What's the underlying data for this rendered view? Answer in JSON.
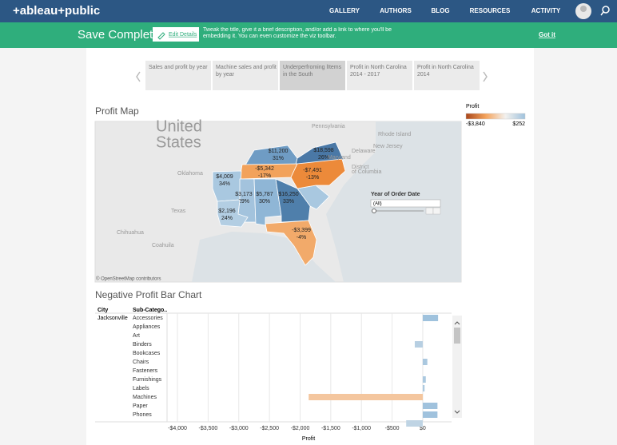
{
  "header": {
    "logo": "+ableau+public",
    "nav": [
      "GALLERY",
      "AUTHORS",
      "BLOG",
      "RESOURCES",
      "ACTIVITY"
    ]
  },
  "banner": {
    "status": "Save Complete.",
    "button": "Edit Details",
    "message": "Tweak the title, give it a brief description, and/or add a link to where you'll be embedding it. You can even customize the viz toolbar.",
    "dismiss": "Got it"
  },
  "tabs": [
    "Sales and profit by year",
    "Machine sales and profit by year",
    "Underperfroming lItems in the South",
    "Profit in North Carolina  2014 - 2017",
    "Profit in North Carolina 2014"
  ],
  "map": {
    "title": "Profit Map",
    "regions": [
      {
        "amount": "$11,200",
        "share": "31%",
        "color": "#6f9cc4"
      },
      {
        "amount": "$18,598",
        "share": "26%",
        "color": "#4a78a6"
      },
      {
        "amount": "-$5,342",
        "share": "-17%",
        "color": "#f2a25b"
      },
      {
        "amount": "-$7,491",
        "share": "-13%",
        "color": "#ec8a3a"
      },
      {
        "amount": "$4,009",
        "share": "34%",
        "color": "#a9c8e0"
      },
      {
        "amount": "$3,173",
        "share": "29%",
        "color": "#a3c3dd"
      },
      {
        "amount": "$5,787",
        "share": "30%",
        "color": "#8fb6d6"
      },
      {
        "amount": "$16,250",
        "share": "33%",
        "color": "#4f7fab"
      },
      {
        "amount": "$2,196",
        "share": "24%",
        "color": "#b3cee3"
      },
      {
        "amount": "-$3,399",
        "share": "-4%",
        "color": "#f2aa6a"
      }
    ],
    "places": [
      "United",
      "States",
      "Pennsylvania",
      "Rhode Island",
      "New Jersey",
      "Delaware",
      "Maryland",
      "District",
      "of Columbia",
      "Oklahoma",
      "Texas",
      "Chihuahua",
      "Coahuila"
    ],
    "attribution": "© OpenStreetMap contributors"
  },
  "filter": {
    "title": "Year of Order Date",
    "value": "(All)"
  },
  "legend": {
    "title": "Profit",
    "min": "-$3,840",
    "max": "$252"
  },
  "chart_data": {
    "type": "bar",
    "orientation": "horizontal",
    "title": "Negative Profit Bar Chart",
    "column_headers": [
      "City",
      "Sub-Catego.."
    ],
    "city": "Jacksonville",
    "categories": [
      "Accessories",
      "Appliances",
      "Art",
      "Binders",
      "Bookcases",
      "Chairs",
      "Fasteners",
      "Furnishings",
      "Labels",
      "Machines",
      "Paper",
      "Phones",
      null
    ],
    "values": [
      250,
      null,
      null,
      -130,
      null,
      75,
      null,
      50,
      30,
      -1860,
      240,
      240,
      -270
    ],
    "color_scale": {
      "min": -3840,
      "max": 252,
      "colors": [
        "#a9461a",
        "#f4a35c",
        "#f3f1ee",
        "#9fc2dd"
      ]
    },
    "xlim": [
      -4170,
      470
    ],
    "xticks": [
      {
        "value": -4000,
        "label": "-$4,000"
      },
      {
        "value": -3500,
        "label": "-$3,500"
      },
      {
        "value": -3000,
        "label": "-$3,000"
      },
      {
        "value": -2500,
        "label": "-$2,500"
      },
      {
        "value": -2000,
        "label": "-$2,000"
      },
      {
        "value": -1500,
        "label": "-$1,500"
      },
      {
        "value": -1000,
        "label": "-$1,000"
      },
      {
        "value": -500,
        "label": "-$500"
      },
      {
        "value": 0,
        "label": "$0"
      }
    ],
    "x_label": "Profit",
    "grid": true
  }
}
